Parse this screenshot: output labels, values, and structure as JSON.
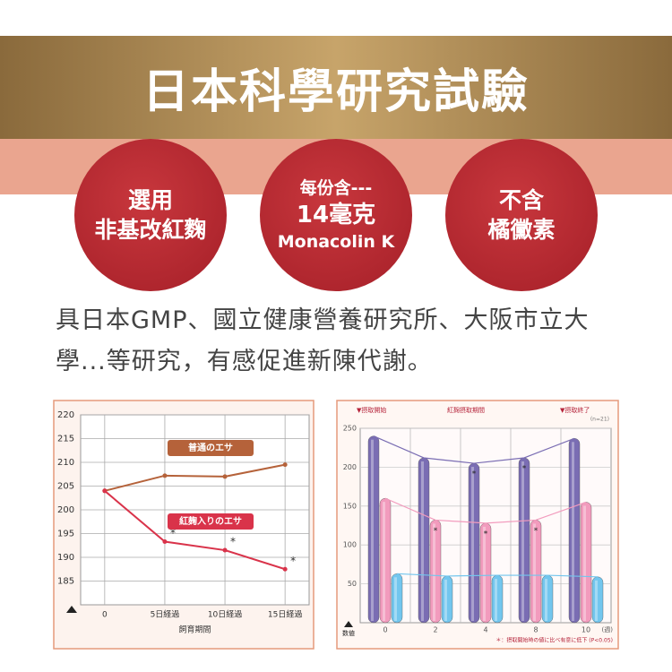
{
  "header": {
    "title": "日本科學研究試驗"
  },
  "badges": [
    {
      "lines": [
        "選用",
        "非基改紅麴"
      ]
    },
    {
      "lines": [
        "每份含---",
        "14毫克",
        "Monacolin K"
      ]
    },
    {
      "lines": [
        "不含",
        "橘黴素"
      ]
    }
  ],
  "description": {
    "lines": [
      "具日本GMP、國立健康營養研究所、大阪市立大",
      "學...等研究，有感促進新陳代謝。"
    ]
  },
  "chart_data": [
    {
      "type": "line",
      "xlabel": "飼育期間",
      "x": [
        0,
        5,
        10,
        15
      ],
      "xlim": [
        -2,
        17
      ],
      "xticks": [
        0,
        {
          "value": 5,
          "label": "5日経過"
        },
        {
          "value": 10,
          "label": "10日経過"
        },
        {
          "value": 15,
          "label": "15日経過"
        }
      ],
      "ylim": [
        180,
        220
      ],
      "yticks": [
        185,
        190,
        195,
        200,
        205,
        210,
        215,
        220
      ],
      "grid": true,
      "asterisk": "*",
      "series": [
        {
          "name": "普通のエサ",
          "color": "#b5623a",
          "values": [
            204,
            207.2,
            207,
            209.5
          ],
          "significant": [
            false,
            false,
            false,
            false
          ]
        },
        {
          "name": "紅麹入りのエサ",
          "color": "#d9334a",
          "values": [
            204,
            193.3,
            191.5,
            187.5
          ],
          "significant": [
            false,
            true,
            true,
            true
          ]
        }
      ]
    },
    {
      "type": "bar",
      "categories": [
        "0",
        "2",
        "4",
        "8",
        "10"
      ],
      "x_unit": "(週)",
      "ylabel": "数値",
      "ylim": [
        0,
        250
      ],
      "yticks": [
        50,
        100,
        150,
        200,
        250
      ],
      "grid": true,
      "asterisk": "*",
      "top_labels": [
        "▼摂取開始",
        "紅麹摂取期間",
        "▼摂取終了"
      ],
      "n_label": "(n=21)",
      "footnote": "＊：摂取開始時の値に比べ有意に低下 (P<0.05)",
      "series": [
        {
          "color": "#7a6db3",
          "values": [
            240,
            212,
            205,
            212,
            237
          ],
          "significant": [
            false,
            false,
            true,
            true,
            false
          ]
        },
        {
          "color": "#f29bbd",
          "values": [
            160,
            132,
            128,
            132,
            155
          ],
          "significant": [
            false,
            true,
            true,
            true,
            false
          ]
        },
        {
          "color": "#72c6ee",
          "values": [
            63,
            60,
            61,
            61,
            59
          ],
          "significant": [
            false,
            false,
            false,
            false,
            false
          ]
        }
      ]
    }
  ]
}
